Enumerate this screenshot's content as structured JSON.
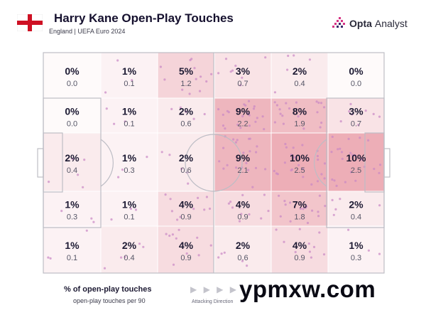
{
  "header": {
    "title": "Harry Kane Open-Play Touches",
    "subtitle": "England | UEFA Euro 2024",
    "brand_bold": "Opta",
    "brand_rest": "Analyst",
    "flag_icon": "england-flag-icon",
    "brand_icon": "opta-logo-icon"
  },
  "legend": {
    "title": "% of open-play touches",
    "subtitle": "open-play touches per 90",
    "arrows": "▶ ▶ ▶ ▶",
    "direction_label": "Attacking Direction"
  },
  "watermark": "ypmxw.com",
  "colors": {
    "heat_base": "#e89aa5",
    "pitch_line": "#bdbdc5",
    "dot": "#c987c5",
    "flag_red": "#ce1124"
  },
  "chart_data": {
    "type": "heatmap",
    "title": "Harry Kane Open-Play Touches",
    "rows": 5,
    "cols": 6,
    "cells": [
      [
        {
          "pct": "0%",
          "p90": "0.0",
          "v": 0
        },
        {
          "pct": "1%",
          "p90": "0.1",
          "v": 1
        },
        {
          "pct": "5%",
          "p90": "1.2",
          "v": 5
        },
        {
          "pct": "3%",
          "p90": "0.7",
          "v": 3
        },
        {
          "pct": "2%",
          "p90": "0.4",
          "v": 2
        },
        {
          "pct": "0%",
          "p90": "0.0",
          "v": 0
        }
      ],
      [
        {
          "pct": "0%",
          "p90": "0.0",
          "v": 0
        },
        {
          "pct": "1%",
          "p90": "0.1",
          "v": 1
        },
        {
          "pct": "2%",
          "p90": "0.6",
          "v": 2
        },
        {
          "pct": "9%",
          "p90": "2.2",
          "v": 9
        },
        {
          "pct": "8%",
          "p90": "1.9",
          "v": 8
        },
        {
          "pct": "3%",
          "p90": "0.7",
          "v": 3
        }
      ],
      [
        {
          "pct": "2%",
          "p90": "0.4",
          "v": 2
        },
        {
          "pct": "1%",
          "p90": "0.3",
          "v": 1
        },
        {
          "pct": "2%",
          "p90": "0.6",
          "v": 2
        },
        {
          "pct": "9%",
          "p90": "2.1",
          "v": 9
        },
        {
          "pct": "10%",
          "p90": "2.5",
          "v": 10
        },
        {
          "pct": "10%",
          "p90": "2.5",
          "v": 10
        }
      ],
      [
        {
          "pct": "1%",
          "p90": "0.3",
          "v": 1
        },
        {
          "pct": "1%",
          "p90": "0.1",
          "v": 1
        },
        {
          "pct": "4%",
          "p90": "0.9",
          "v": 4
        },
        {
          "pct": "4%",
          "p90": "0.9",
          "v": 4
        },
        {
          "pct": "7%",
          "p90": "1.8",
          "v": 7
        },
        {
          "pct": "2%",
          "p90": "0.4",
          "v": 2
        }
      ],
      [
        {
          "pct": "1%",
          "p90": "0.1",
          "v": 1
        },
        {
          "pct": "2%",
          "p90": "0.4",
          "v": 2
        },
        {
          "pct": "4%",
          "p90": "0.9",
          "v": 4
        },
        {
          "pct": "2%",
          "p90": "0.6",
          "v": 2
        },
        {
          "pct": "4%",
          "p90": "0.9",
          "v": 4
        },
        {
          "pct": "1%",
          "p90": "0.3",
          "v": 1
        }
      ]
    ]
  }
}
